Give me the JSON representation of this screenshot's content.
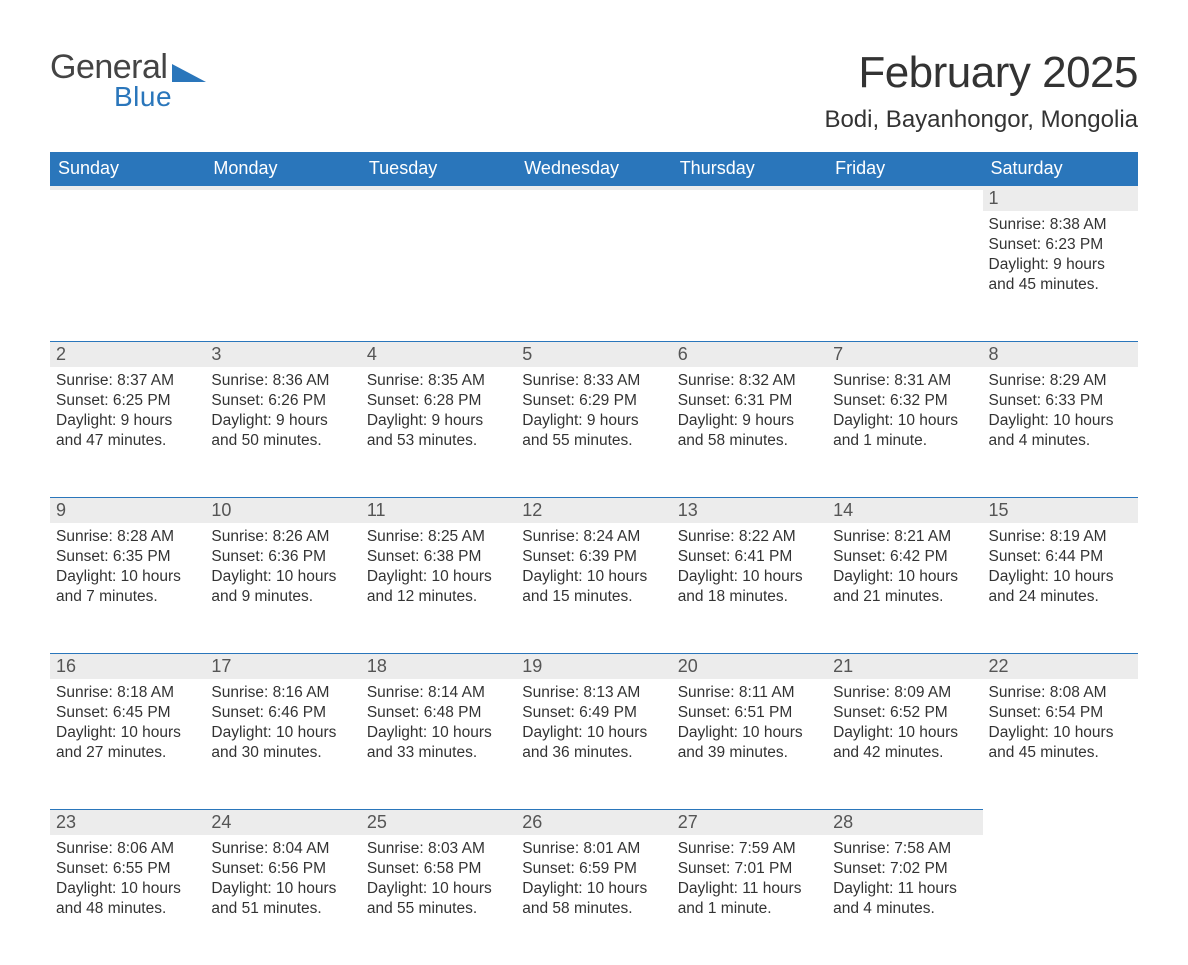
{
  "brand": {
    "word1": "General",
    "word2": "Blue",
    "color": "#2a76bb"
  },
  "title": "February 2025",
  "location": "Bodi, Bayanhongor, Mongolia",
  "colors": {
    "header_bg": "#2a76bb",
    "header_text": "#ffffff",
    "daynum_bg": "#ececec",
    "daynum_border": "#2a76bb",
    "body_text": "#333333"
  },
  "typography": {
    "title_fontsize": 44,
    "location_fontsize": 24,
    "weekday_fontsize": 18,
    "daynum_fontsize": 18,
    "body_fontsize": 15.5,
    "font_family": "Helvetica Neue"
  },
  "weekday_labels": [
    "Sunday",
    "Monday",
    "Tuesday",
    "Wednesday",
    "Thursday",
    "Friday",
    "Saturday"
  ],
  "weeks": [
    [
      null,
      null,
      null,
      null,
      null,
      null,
      {
        "n": "1",
        "sunrise": "Sunrise: 8:38 AM",
        "sunset": "Sunset: 6:23 PM",
        "dl1": "Daylight: 9 hours",
        "dl2": "and 45 minutes."
      }
    ],
    [
      {
        "n": "2",
        "sunrise": "Sunrise: 8:37 AM",
        "sunset": "Sunset: 6:25 PM",
        "dl1": "Daylight: 9 hours",
        "dl2": "and 47 minutes."
      },
      {
        "n": "3",
        "sunrise": "Sunrise: 8:36 AM",
        "sunset": "Sunset: 6:26 PM",
        "dl1": "Daylight: 9 hours",
        "dl2": "and 50 minutes."
      },
      {
        "n": "4",
        "sunrise": "Sunrise: 8:35 AM",
        "sunset": "Sunset: 6:28 PM",
        "dl1": "Daylight: 9 hours",
        "dl2": "and 53 minutes."
      },
      {
        "n": "5",
        "sunrise": "Sunrise: 8:33 AM",
        "sunset": "Sunset: 6:29 PM",
        "dl1": "Daylight: 9 hours",
        "dl2": "and 55 minutes."
      },
      {
        "n": "6",
        "sunrise": "Sunrise: 8:32 AM",
        "sunset": "Sunset: 6:31 PM",
        "dl1": "Daylight: 9 hours",
        "dl2": "and 58 minutes."
      },
      {
        "n": "7",
        "sunrise": "Sunrise: 8:31 AM",
        "sunset": "Sunset: 6:32 PM",
        "dl1": "Daylight: 10 hours",
        "dl2": "and 1 minute."
      },
      {
        "n": "8",
        "sunrise": "Sunrise: 8:29 AM",
        "sunset": "Sunset: 6:33 PM",
        "dl1": "Daylight: 10 hours",
        "dl2": "and 4 minutes."
      }
    ],
    [
      {
        "n": "9",
        "sunrise": "Sunrise: 8:28 AM",
        "sunset": "Sunset: 6:35 PM",
        "dl1": "Daylight: 10 hours",
        "dl2": "and 7 minutes."
      },
      {
        "n": "10",
        "sunrise": "Sunrise: 8:26 AM",
        "sunset": "Sunset: 6:36 PM",
        "dl1": "Daylight: 10 hours",
        "dl2": "and 9 minutes."
      },
      {
        "n": "11",
        "sunrise": "Sunrise: 8:25 AM",
        "sunset": "Sunset: 6:38 PM",
        "dl1": "Daylight: 10 hours",
        "dl2": "and 12 minutes."
      },
      {
        "n": "12",
        "sunrise": "Sunrise: 8:24 AM",
        "sunset": "Sunset: 6:39 PM",
        "dl1": "Daylight: 10 hours",
        "dl2": "and 15 minutes."
      },
      {
        "n": "13",
        "sunrise": "Sunrise: 8:22 AM",
        "sunset": "Sunset: 6:41 PM",
        "dl1": "Daylight: 10 hours",
        "dl2": "and 18 minutes."
      },
      {
        "n": "14",
        "sunrise": "Sunrise: 8:21 AM",
        "sunset": "Sunset: 6:42 PM",
        "dl1": "Daylight: 10 hours",
        "dl2": "and 21 minutes."
      },
      {
        "n": "15",
        "sunrise": "Sunrise: 8:19 AM",
        "sunset": "Sunset: 6:44 PM",
        "dl1": "Daylight: 10 hours",
        "dl2": "and 24 minutes."
      }
    ],
    [
      {
        "n": "16",
        "sunrise": "Sunrise: 8:18 AM",
        "sunset": "Sunset: 6:45 PM",
        "dl1": "Daylight: 10 hours",
        "dl2": "and 27 minutes."
      },
      {
        "n": "17",
        "sunrise": "Sunrise: 8:16 AM",
        "sunset": "Sunset: 6:46 PM",
        "dl1": "Daylight: 10 hours",
        "dl2": "and 30 minutes."
      },
      {
        "n": "18",
        "sunrise": "Sunrise: 8:14 AM",
        "sunset": "Sunset: 6:48 PM",
        "dl1": "Daylight: 10 hours",
        "dl2": "and 33 minutes."
      },
      {
        "n": "19",
        "sunrise": "Sunrise: 8:13 AM",
        "sunset": "Sunset: 6:49 PM",
        "dl1": "Daylight: 10 hours",
        "dl2": "and 36 minutes."
      },
      {
        "n": "20",
        "sunrise": "Sunrise: 8:11 AM",
        "sunset": "Sunset: 6:51 PM",
        "dl1": "Daylight: 10 hours",
        "dl2": "and 39 minutes."
      },
      {
        "n": "21",
        "sunrise": "Sunrise: 8:09 AM",
        "sunset": "Sunset: 6:52 PM",
        "dl1": "Daylight: 10 hours",
        "dl2": "and 42 minutes."
      },
      {
        "n": "22",
        "sunrise": "Sunrise: 8:08 AM",
        "sunset": "Sunset: 6:54 PM",
        "dl1": "Daylight: 10 hours",
        "dl2": "and 45 minutes."
      }
    ],
    [
      {
        "n": "23",
        "sunrise": "Sunrise: 8:06 AM",
        "sunset": "Sunset: 6:55 PM",
        "dl1": "Daylight: 10 hours",
        "dl2": "and 48 minutes."
      },
      {
        "n": "24",
        "sunrise": "Sunrise: 8:04 AM",
        "sunset": "Sunset: 6:56 PM",
        "dl1": "Daylight: 10 hours",
        "dl2": "and 51 minutes."
      },
      {
        "n": "25",
        "sunrise": "Sunrise: 8:03 AM",
        "sunset": "Sunset: 6:58 PM",
        "dl1": "Daylight: 10 hours",
        "dl2": "and 55 minutes."
      },
      {
        "n": "26",
        "sunrise": "Sunrise: 8:01 AM",
        "sunset": "Sunset: 6:59 PM",
        "dl1": "Daylight: 10 hours",
        "dl2": "and 58 minutes."
      },
      {
        "n": "27",
        "sunrise": "Sunrise: 7:59 AM",
        "sunset": "Sunset: 7:01 PM",
        "dl1": "Daylight: 11 hours",
        "dl2": "and 1 minute."
      },
      {
        "n": "28",
        "sunrise": "Sunrise: 7:58 AM",
        "sunset": "Sunset: 7:02 PM",
        "dl1": "Daylight: 11 hours",
        "dl2": "and 4 minutes."
      },
      null
    ]
  ]
}
